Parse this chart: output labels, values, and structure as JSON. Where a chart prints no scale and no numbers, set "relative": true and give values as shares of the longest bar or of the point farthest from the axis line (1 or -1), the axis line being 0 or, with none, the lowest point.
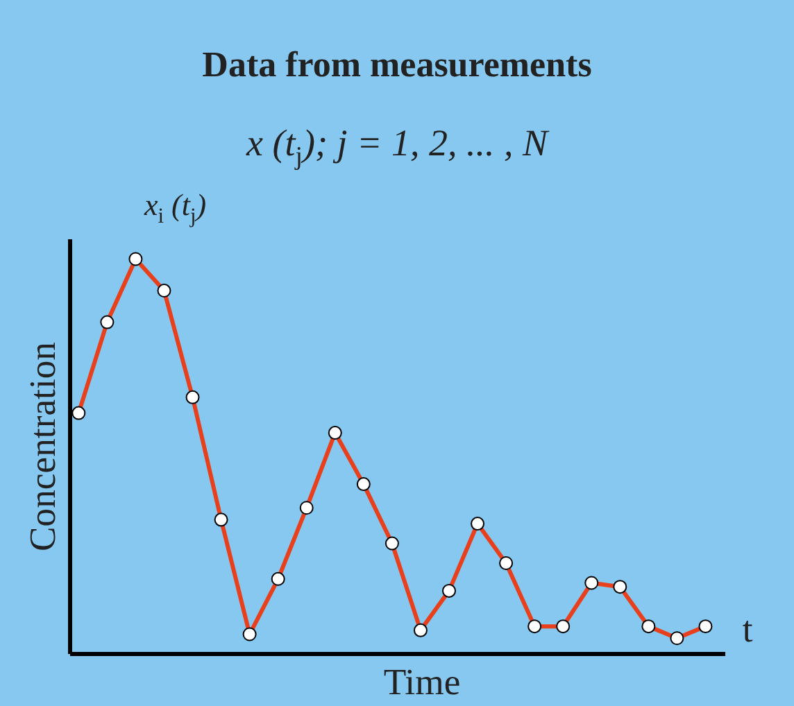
{
  "chart_data": {
    "type": "line",
    "title": "Data from measurements",
    "subtitle": "x (t$_{j}$); j = 1, 2, ... , N",
    "xlabel": "Time",
    "ylabel": "Concentration",
    "annotations": [
      "x$_{i}$ (t$_{j}$)",
      "t"
    ],
    "relative": true,
    "categories": [
      null,
      null,
      null,
      null,
      null,
      null,
      null,
      null,
      null,
      null,
      null,
      null,
      null,
      null,
      null,
      null,
      null,
      null,
      null,
      null,
      null,
      null,
      null
    ],
    "series": [
      {
        "color": "#e8401c",
        "marker": "circle",
        "values": [
          0.61,
          0.84,
          1.0,
          0.92,
          0.65,
          0.34,
          0.05,
          0.19,
          0.37,
          0.56,
          0.43,
          0.28,
          0.06,
          0.16,
          0.33,
          0.23,
          0.07,
          0.07,
          0.18,
          0.17,
          0.07,
          0.04,
          0.07
        ]
      }
    ]
  }
}
